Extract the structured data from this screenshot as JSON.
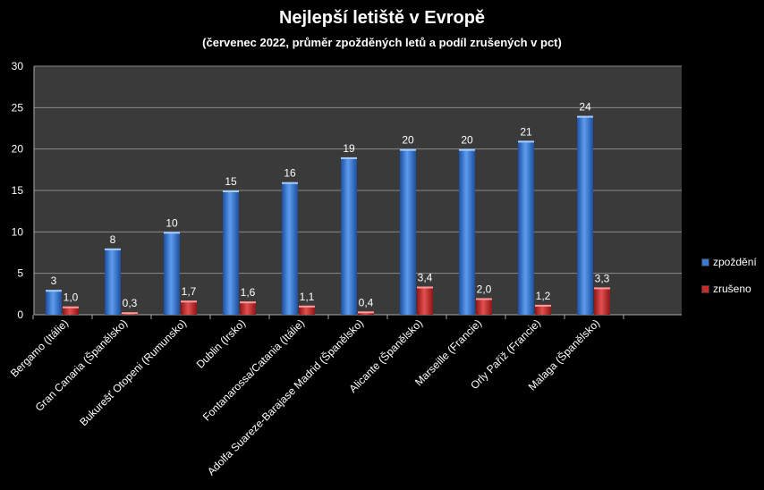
{
  "chart_data": {
    "type": "bar",
    "title": "Nejlepší letiště v Evropě",
    "subtitle": "(červenec 2022, průměr zpožděných letů a podíl zrušených v pct)",
    "categories": [
      "Bergamo (Itálie)",
      "Gran Canaria (Španělsko)",
      "Bukurešť Otopeni (Rumunsko)",
      "Dublin (Irsko)",
      "Fontanarossa/Catania  (Itálie)",
      "Adolfa Suareze-Barajase Madrid (Španělsko)",
      "Alicante (Španělsko)",
      "Marseille (Francie)",
      "Orly Paříž (Francie)",
      "Malaga (Španělsko)"
    ],
    "series": [
      {
        "name": "zpoždění",
        "color": "#3a78d6",
        "values": [
          3,
          8,
          10,
          15,
          16,
          19,
          20,
          20,
          21,
          24
        ],
        "labels": [
          "3",
          "8",
          "10",
          "15",
          "16",
          "19",
          "20",
          "20",
          "21",
          "24"
        ]
      },
      {
        "name": "zrušeno",
        "color": "#cc2a2a",
        "values": [
          1.0,
          0.3,
          1.7,
          1.6,
          1.1,
          0.4,
          3.4,
          2.0,
          1.2,
          3.3
        ],
        "labels": [
          "1,0",
          "0,3",
          "1,7",
          "1,6",
          "1,1",
          "0,4",
          "3,4",
          "2,0",
          "1,2",
          "3,3"
        ]
      }
    ],
    "ylim": [
      0,
      30
    ],
    "yticks": [
      0,
      5,
      10,
      15,
      20,
      25,
      30
    ],
    "grid": true,
    "legend_position": "right"
  }
}
